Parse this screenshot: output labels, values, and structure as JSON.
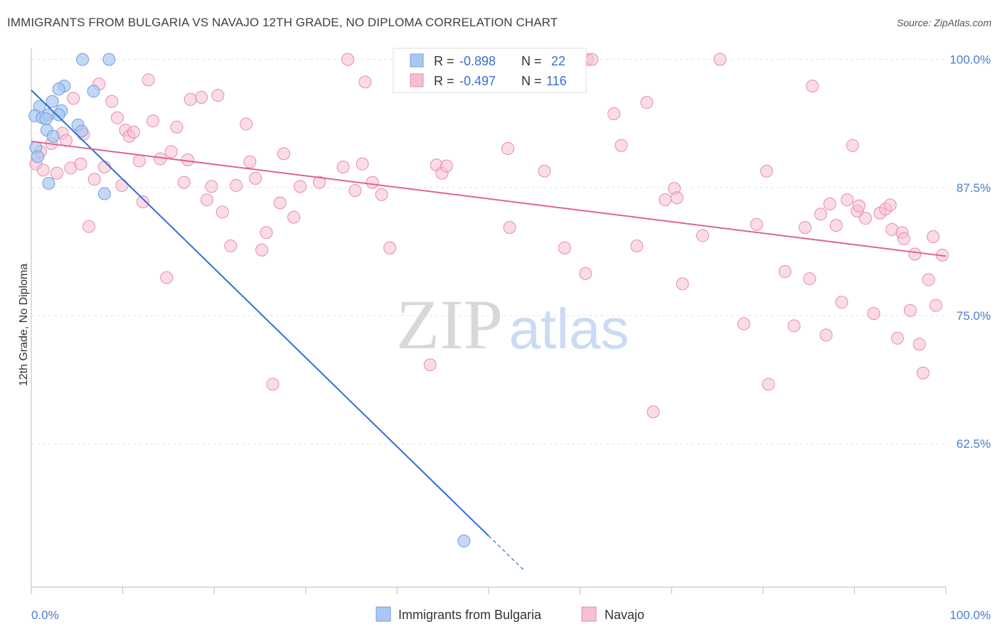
{
  "title": "IMMIGRANTS FROM BULGARIA VS NAVAJO 12TH GRADE, NO DIPLOMA CORRELATION CHART",
  "source": "Source: ZipAtlas.com",
  "watermark": {
    "zip": "ZIP",
    "atlas": "atlas"
  },
  "colors": {
    "blue_fill": "#a9c8f0",
    "blue_stroke": "#6f9fe0",
    "blue_line": "#2d6fd3",
    "pink_fill": "#f6bfd2",
    "pink_stroke": "#e88aab",
    "pink_line": "#e0648f",
    "grid": "#e2e2e2",
    "axis": "#bbbbbb",
    "tick_text": "#4a7bd0"
  },
  "legend_box": {
    "rows": [
      {
        "r_label": "R =",
        "r_value": "-0.898",
        "n_label": "N =",
        "n_value": "22"
      },
      {
        "r_label": "R =",
        "r_value": "-0.497",
        "n_label": "N =",
        "n_value": "116"
      }
    ]
  },
  "bottom_legend": [
    "Immigrants from Bulgaria",
    "Navajo"
  ],
  "chart_data": {
    "type": "scatter",
    "title": "IMMIGRANTS FROM BULGARIA VS NAVAJO 12TH GRADE, NO DIPLOMA CORRELATION CHART",
    "xlabel": "",
    "ylabel": "12th Grade, No Diploma",
    "xlim": [
      0,
      100
    ],
    "ylim": [
      48.5,
      101.5
    ],
    "x_tick_labels": [
      "0.0%",
      "100.0%"
    ],
    "y_ticks": [
      62.5,
      75.0,
      87.5,
      100.0
    ],
    "y_tick_labels": [
      "62.5%",
      "75.0%",
      "87.5%",
      "100.0%"
    ],
    "grid": true,
    "legend_placement": "top-center",
    "series": [
      {
        "name": "Immigrants from Bulgaria",
        "r": -0.898,
        "n": 22,
        "trend": {
          "x0": 0,
          "y0": 97.0,
          "x1": 50,
          "y1": 53.5,
          "dash_to_x": 54
        },
        "points": [
          [
            5.6,
            100.0
          ],
          [
            8.5,
            100.0
          ],
          [
            3.6,
            97.4
          ],
          [
            3.0,
            97.1
          ],
          [
            6.8,
            96.9
          ],
          [
            2.3,
            95.9
          ],
          [
            0.9,
            95.4
          ],
          [
            3.3,
            95.0
          ],
          [
            0.4,
            94.5
          ],
          [
            1.2,
            94.3
          ],
          [
            1.9,
            94.6
          ],
          [
            3.0,
            94.6
          ],
          [
            1.6,
            94.2
          ],
          [
            5.1,
            93.6
          ],
          [
            1.7,
            93.1
          ],
          [
            5.5,
            93.0
          ],
          [
            2.4,
            92.5
          ],
          [
            0.5,
            91.4
          ],
          [
            1.9,
            87.9
          ],
          [
            8.0,
            86.9
          ],
          [
            47.3,
            53.0
          ],
          [
            0.7,
            90.5
          ]
        ]
      },
      {
        "name": "Navajo",
        "r": -0.497,
        "n": 116,
        "trend": {
          "x0": 0,
          "y0": 92.0,
          "x1": 100,
          "y1": 80.8
        },
        "points": [
          [
            0.5,
            89.8
          ],
          [
            1.0,
            91.0
          ],
          [
            1.3,
            89.2
          ],
          [
            2.2,
            91.8
          ],
          [
            2.8,
            88.9
          ],
          [
            3.4,
            92.8
          ],
          [
            3.8,
            92.1
          ],
          [
            4.3,
            89.4
          ],
          [
            4.6,
            96.2
          ],
          [
            5.4,
            89.8
          ],
          [
            5.7,
            92.7
          ],
          [
            6.3,
            83.7
          ],
          [
            6.9,
            88.3
          ],
          [
            7.4,
            97.6
          ],
          [
            8.0,
            89.5
          ],
          [
            8.8,
            95.9
          ],
          [
            9.4,
            94.3
          ],
          [
            9.9,
            87.7
          ],
          [
            10.3,
            93.1
          ],
          [
            10.7,
            92.5
          ],
          [
            11.2,
            92.9
          ],
          [
            11.8,
            90.1
          ],
          [
            12.2,
            86.1
          ],
          [
            12.8,
            98.0
          ],
          [
            13.3,
            94.0
          ],
          [
            14.1,
            90.3
          ],
          [
            14.8,
            78.7
          ],
          [
            15.3,
            91.0
          ],
          [
            15.9,
            93.4
          ],
          [
            16.7,
            88.0
          ],
          [
            17.4,
            96.1
          ],
          [
            18.6,
            96.3
          ],
          [
            19.2,
            86.3
          ],
          [
            19.7,
            87.6
          ],
          [
            20.4,
            96.5
          ],
          [
            20.9,
            85.1
          ],
          [
            22.4,
            87.7
          ],
          [
            23.5,
            93.7
          ],
          [
            23.9,
            90.0
          ],
          [
            24.5,
            88.4
          ],
          [
            25.2,
            81.4
          ],
          [
            25.7,
            83.1
          ],
          [
            26.4,
            68.3
          ],
          [
            27.2,
            86.0
          ],
          [
            27.6,
            90.8
          ],
          [
            28.7,
            84.6
          ],
          [
            29.4,
            87.6
          ],
          [
            31.5,
            88.0
          ],
          [
            34.1,
            89.5
          ],
          [
            34.6,
            100.0
          ],
          [
            35.4,
            87.2
          ],
          [
            36.2,
            89.8
          ],
          [
            36.5,
            97.8
          ],
          [
            37.3,
            88.0
          ],
          [
            38.3,
            86.8
          ],
          [
            39.2,
            81.6
          ],
          [
            43.6,
            70.2
          ],
          [
            44.3,
            89.7
          ],
          [
            44.9,
            88.9
          ],
          [
            45.4,
            89.6
          ],
          [
            52.1,
            91.3
          ],
          [
            52.3,
            83.6
          ],
          [
            53.2,
            100.0
          ],
          [
            56.1,
            89.1
          ],
          [
            58.3,
            81.6
          ],
          [
            60.6,
            79.1
          ],
          [
            60.8,
            100.0
          ],
          [
            61.3,
            100.0
          ],
          [
            63.7,
            94.7
          ],
          [
            64.5,
            91.6
          ],
          [
            66.2,
            81.8
          ],
          [
            67.3,
            95.8
          ],
          [
            68.0,
            65.6
          ],
          [
            69.3,
            86.3
          ],
          [
            70.3,
            87.4
          ],
          [
            70.6,
            86.5
          ],
          [
            71.2,
            78.1
          ],
          [
            73.4,
            82.8
          ],
          [
            75.3,
            100.0
          ],
          [
            77.9,
            74.2
          ],
          [
            79.3,
            83.9
          ],
          [
            80.4,
            89.1
          ],
          [
            80.6,
            68.3
          ],
          [
            82.4,
            79.3
          ],
          [
            83.4,
            74.0
          ],
          [
            84.6,
            83.6
          ],
          [
            85.1,
            78.6
          ],
          [
            85.4,
            97.4
          ],
          [
            86.3,
            84.9
          ],
          [
            86.9,
            73.1
          ],
          [
            87.3,
            85.9
          ],
          [
            88.0,
            83.8
          ],
          [
            88.6,
            76.3
          ],
          [
            89.2,
            86.3
          ],
          [
            89.8,
            91.6
          ],
          [
            90.3,
            85.2
          ],
          [
            90.5,
            85.7
          ],
          [
            91.2,
            84.5
          ],
          [
            92.1,
            75.2
          ],
          [
            92.8,
            85.0
          ],
          [
            93.4,
            85.4
          ],
          [
            93.9,
            85.8
          ],
          [
            94.1,
            83.4
          ],
          [
            94.7,
            72.8
          ],
          [
            95.2,
            83.1
          ],
          [
            95.4,
            82.5
          ],
          [
            96.1,
            75.5
          ],
          [
            96.6,
            81.0
          ],
          [
            97.1,
            72.2
          ],
          [
            97.5,
            69.4
          ],
          [
            98.1,
            78.5
          ],
          [
            98.6,
            82.7
          ],
          [
            98.9,
            76.0
          ],
          [
            99.6,
            80.9
          ],
          [
            17.1,
            90.2
          ],
          [
            21.8,
            81.8
          ]
        ]
      }
    ]
  }
}
